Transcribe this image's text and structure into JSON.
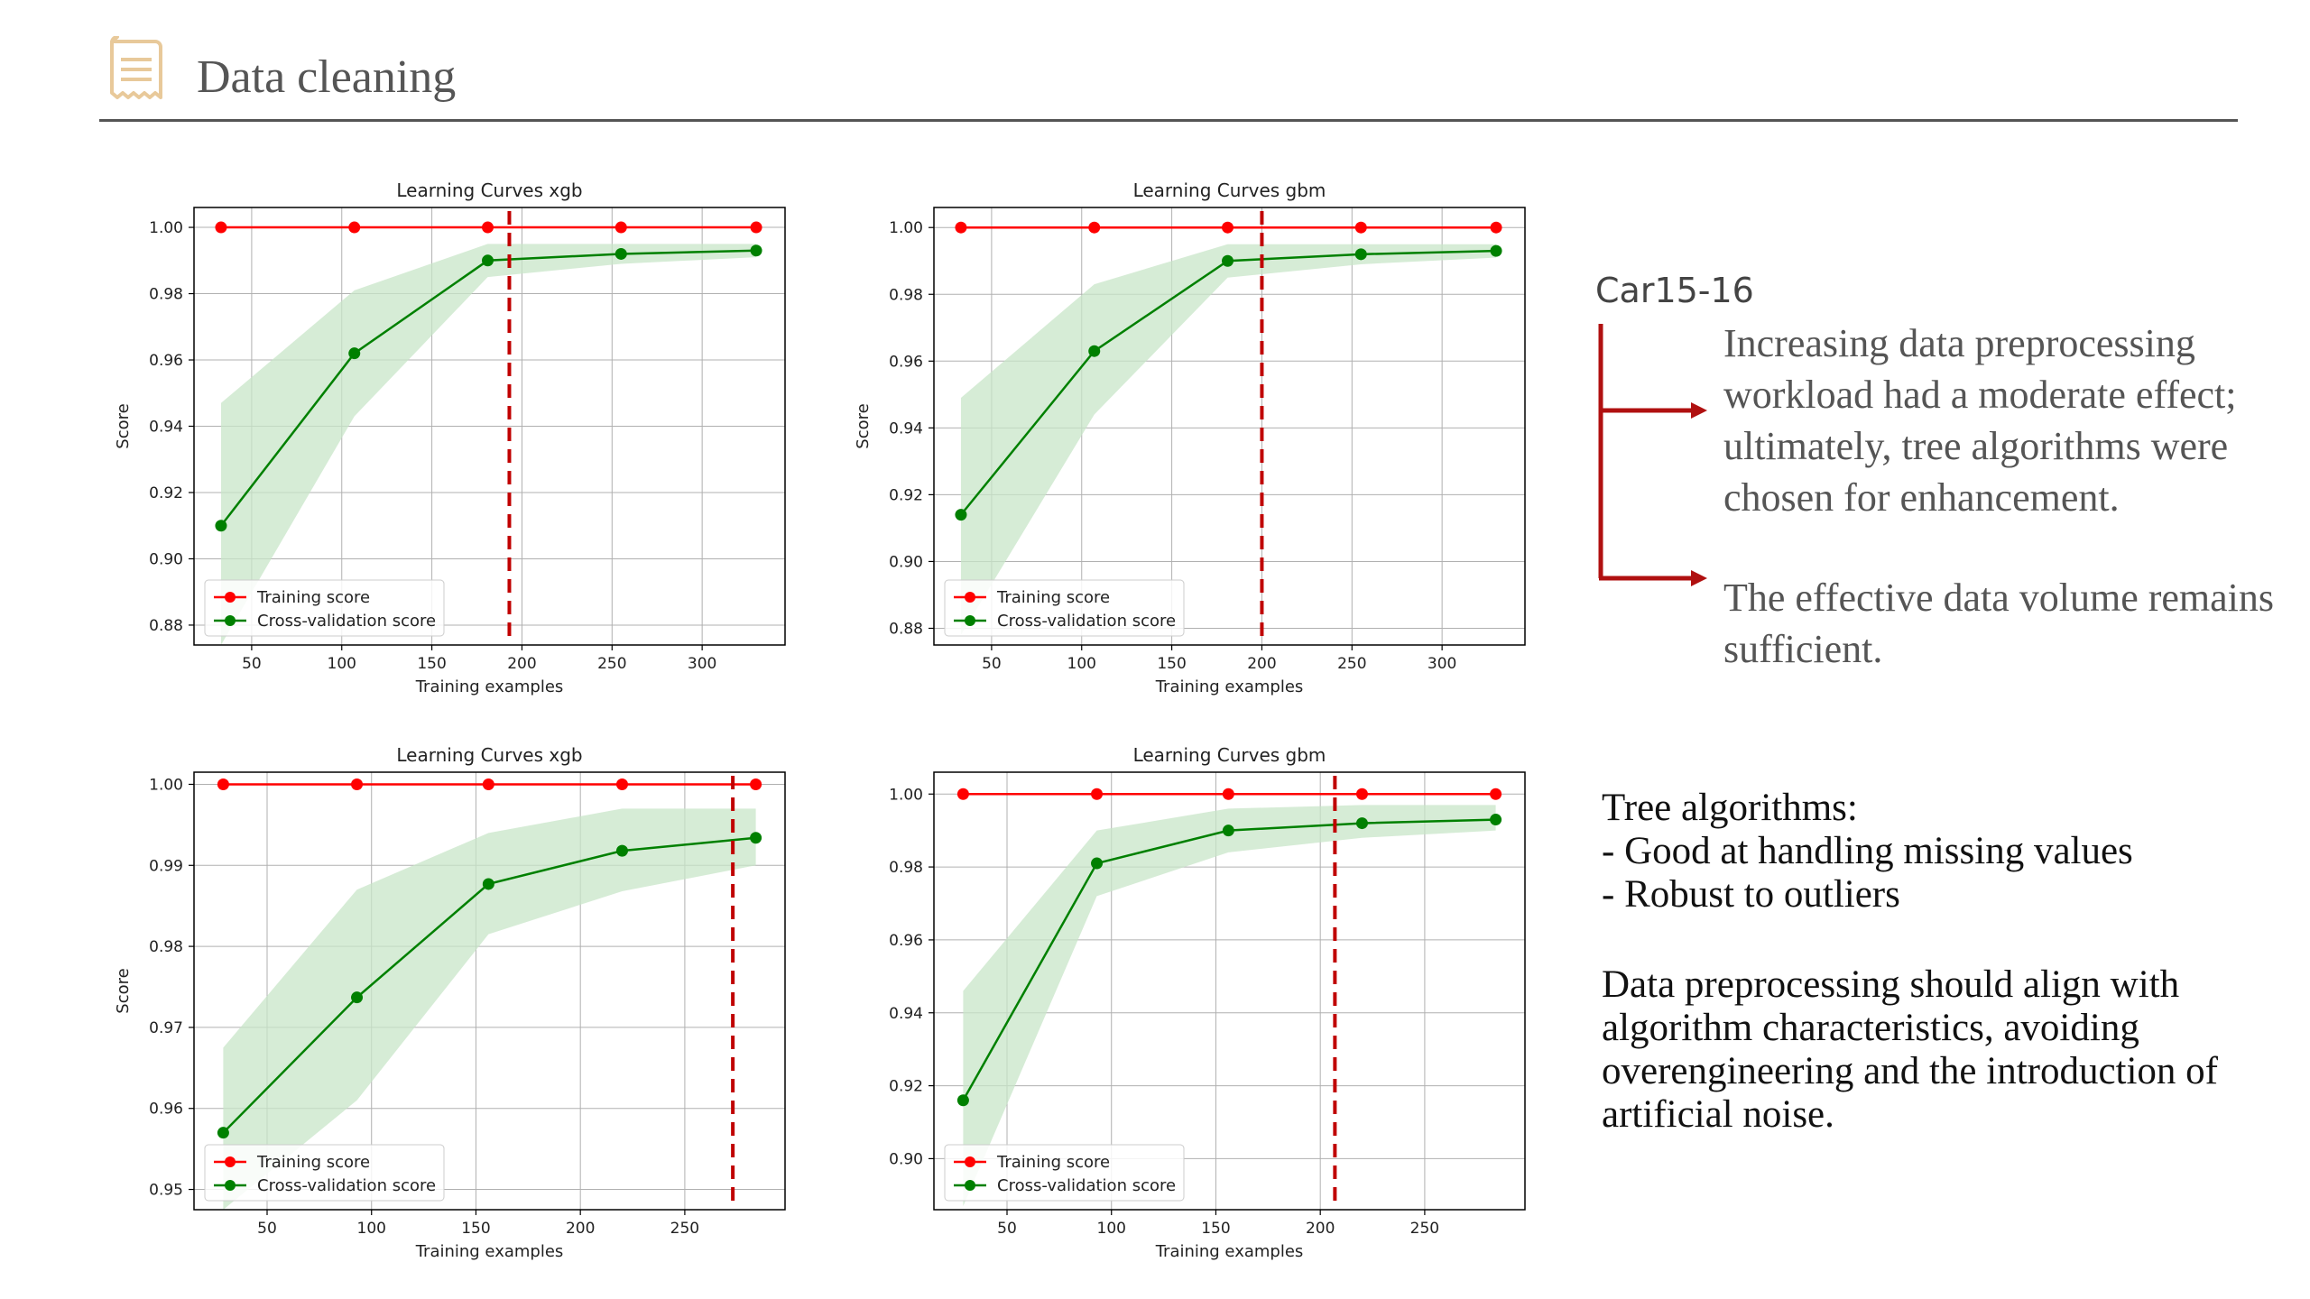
{
  "page": {
    "title": "Data cleaning",
    "car_label": "Car15-16",
    "note1": "Increasing data preprocessing workload had a moderate effect; ultimately, tree algorithms were chosen for enhancement.",
    "note2": "The effective data volume remains sufficient.",
    "tree_title": "Tree algorithms:",
    "tree_points": [
      "- Good at handling missing values",
      "- Robust to outliers"
    ],
    "dp_text": "Data preprocessing should align with algorithm characteristics, avoiding overengineering and the introduction of artificial noise.",
    "colors": {
      "training": "#ff0000",
      "cv": "#008000",
      "band": "#c8e6c8",
      "marker": "#c00000",
      "arrow": "#b01010",
      "icon": "#e8c99a"
    }
  },
  "chart_data": [
    {
      "type": "line",
      "title": "Learning Curves xgb",
      "xlabel": "Training examples",
      "ylabel": "Score",
      "xlim": [
        18,
        346
      ],
      "ylim": [
        0.874,
        1.006
      ],
      "xticks": [
        50,
        100,
        150,
        200,
        250,
        300
      ],
      "yticks": [
        0.88,
        0.9,
        0.92,
        0.94,
        0.96,
        0.98,
        1.0
      ],
      "ytick_labels": [
        "0.88",
        "0.90",
        "0.92",
        "0.94",
        "0.96",
        "0.98",
        "1.00"
      ],
      "x": [
        33,
        107,
        181,
        255,
        330
      ],
      "series": [
        {
          "name": "Training score",
          "values": [
            1.0,
            1.0,
            1.0,
            1.0,
            1.0
          ]
        },
        {
          "name": "Cross-validation score",
          "values": [
            0.91,
            0.962,
            0.99,
            0.992,
            0.993
          ],
          "band_low": [
            0.874,
            0.943,
            0.985,
            0.989,
            0.991
          ],
          "band_high": [
            0.947,
            0.981,
            0.995,
            0.995,
            0.995
          ]
        }
      ],
      "vline": 193,
      "grid": true,
      "legend": "lower-left"
    },
    {
      "type": "line",
      "title": "Learning Curves gbm",
      "xlabel": "Training examples",
      "ylabel": "Score",
      "xlim": [
        18,
        346
      ],
      "ylim": [
        0.875,
        1.006
      ],
      "xticks": [
        50,
        100,
        150,
        200,
        250,
        300
      ],
      "yticks": [
        0.88,
        0.9,
        0.92,
        0.94,
        0.96,
        0.98,
        1.0
      ],
      "ytick_labels": [
        "0.88",
        "0.90",
        "0.92",
        "0.94",
        "0.96",
        "0.98",
        "1.00"
      ],
      "x": [
        33,
        107,
        181,
        255,
        330
      ],
      "series": [
        {
          "name": "Training score",
          "values": [
            1.0,
            1.0,
            1.0,
            1.0,
            1.0
          ]
        },
        {
          "name": "Cross-validation score",
          "values": [
            0.914,
            0.963,
            0.99,
            0.992,
            0.993
          ],
          "band_low": [
            0.878,
            0.944,
            0.985,
            0.989,
            0.991
          ],
          "band_high": [
            0.949,
            0.983,
            0.995,
            0.995,
            0.995
          ]
        }
      ],
      "vline": 200,
      "grid": true,
      "legend": "lower-left"
    },
    {
      "type": "line",
      "title": "Learning Curves xgb",
      "xlabel": "Training examples",
      "ylabel": "Score",
      "xlim": [
        15,
        298
      ],
      "ylim": [
        0.9475,
        1.0015
      ],
      "xticks": [
        50,
        100,
        150,
        200,
        250
      ],
      "yticks": [
        0.95,
        0.96,
        0.97,
        0.98,
        0.99,
        1.0
      ],
      "ytick_labels": [
        "0.95",
        "0.96",
        "0.97",
        "0.98",
        "0.99",
        "1.00"
      ],
      "x": [
        29,
        93,
        156,
        220,
        284
      ],
      "series": [
        {
          "name": "Training score",
          "values": [
            1.0,
            1.0,
            1.0,
            1.0,
            1.0
          ]
        },
        {
          "name": "Cross-validation score",
          "values": [
            0.957,
            0.9737,
            0.9877,
            0.9918,
            0.9934
          ],
          "band_low": [
            0.9475,
            0.961,
            0.9815,
            0.9868,
            0.99
          ],
          "band_high": [
            0.9675,
            0.987,
            0.994,
            0.997,
            0.997
          ]
        }
      ],
      "vline": 273,
      "grid": true,
      "legend": "lower-left"
    },
    {
      "type": "line",
      "title": "Learning Curves gbm",
      "xlabel": "Training examples",
      "ylabel": "",
      "xlim": [
        15,
        298
      ],
      "ylim": [
        0.886,
        1.006
      ],
      "xticks": [
        50,
        100,
        150,
        200,
        250
      ],
      "yticks": [
        0.9,
        0.92,
        0.94,
        0.96,
        0.98,
        1.0
      ],
      "ytick_labels": [
        "0.90",
        "0.92",
        "0.94",
        "0.96",
        "0.98",
        "1.00"
      ],
      "x": [
        29,
        93,
        156,
        220,
        284
      ],
      "series": [
        {
          "name": "Training score",
          "values": [
            1.0,
            1.0,
            1.0,
            1.0,
            1.0
          ]
        },
        {
          "name": "Cross-validation score",
          "values": [
            0.916,
            0.981,
            0.99,
            0.992,
            0.993
          ],
          "band_low": [
            0.887,
            0.972,
            0.984,
            0.988,
            0.99
          ],
          "band_high": [
            0.946,
            0.99,
            0.996,
            0.997,
            0.997
          ]
        }
      ],
      "vline": 207,
      "grid": true,
      "legend": "lower-left"
    }
  ]
}
